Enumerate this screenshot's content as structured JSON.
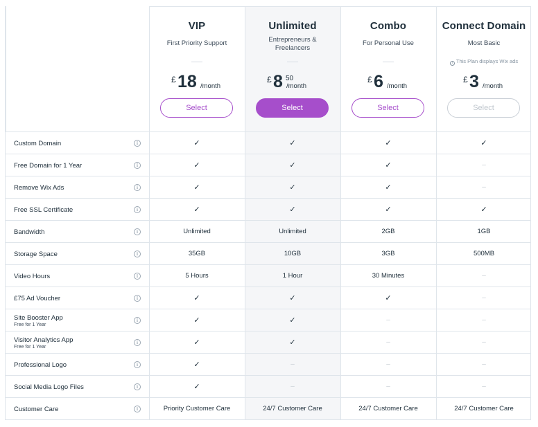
{
  "plans": [
    {
      "name": "VIP",
      "subtitle": "First Priority Support",
      "note": "",
      "currency": "£",
      "amount": "18",
      "cents": "",
      "period": "/month",
      "button": "Select",
      "style": "outline"
    },
    {
      "name": "Unlimited",
      "subtitle": "Entrepreneurs & Freelancers",
      "note": "",
      "currency": "£",
      "amount": "8",
      "cents": "50",
      "period": "/month",
      "button": "Select",
      "style": "primary"
    },
    {
      "name": "Combo",
      "subtitle": "For Personal Use",
      "note": "",
      "currency": "£",
      "amount": "6",
      "cents": "",
      "period": "/month",
      "button": "Select",
      "style": "outline"
    },
    {
      "name": "Connect Domain",
      "subtitle": "Most Basic",
      "note": "This Plan displays Wix ads",
      "currency": "£",
      "amount": "3",
      "cents": "",
      "period": "/month",
      "button": "Select",
      "style": "disabled"
    }
  ],
  "icons": {
    "check": "checkmark-icon",
    "dash": "dash-icon",
    "info": "info-icon"
  },
  "features": [
    {
      "label": "Custom Domain",
      "sub": "",
      "values": [
        "✓",
        "✓",
        "✓",
        "✓"
      ]
    },
    {
      "label": "Free Domain for 1 Year",
      "sub": "",
      "values": [
        "✓",
        "✓",
        "✓",
        "–"
      ]
    },
    {
      "label": "Remove Wix Ads",
      "sub": "",
      "values": [
        "✓",
        "✓",
        "✓",
        "–"
      ]
    },
    {
      "label": "Free SSL Certificate",
      "sub": "",
      "values": [
        "✓",
        "✓",
        "✓",
        "✓"
      ]
    },
    {
      "label": "Bandwidth",
      "sub": "",
      "values": [
        "Unlimited",
        "Unlimited",
        "2GB",
        "1GB"
      ]
    },
    {
      "label": "Storage Space",
      "sub": "",
      "values": [
        "35GB",
        "10GB",
        "3GB",
        "500MB"
      ]
    },
    {
      "label": "Video Hours",
      "sub": "",
      "values": [
        "5 Hours",
        "1 Hour",
        "30 Minutes",
        "–"
      ]
    },
    {
      "label": "£75 Ad Voucher",
      "sub": "",
      "values": [
        "✓",
        "✓",
        "✓",
        "–"
      ]
    },
    {
      "label": "Site Booster App",
      "sub": "Free for 1 Year",
      "values": [
        "✓",
        "✓",
        "–",
        "–"
      ]
    },
    {
      "label": "Visitor Analytics App",
      "sub": "Free for 1 Year",
      "values": [
        "✓",
        "✓",
        "–",
        "–"
      ]
    },
    {
      "label": "Professional Logo",
      "sub": "",
      "values": [
        "✓",
        "–",
        "–",
        "–"
      ]
    },
    {
      "label": "Social Media Logo Files",
      "sub": "",
      "values": [
        "✓",
        "–",
        "–",
        "–"
      ]
    },
    {
      "label": "Customer Care",
      "sub": "",
      "values": [
        "Priority Customer Care",
        "24/7 Customer Care",
        "24/7 Customer Care",
        "24/7 Customer Care"
      ]
    }
  ],
  "colors": {
    "accent": "#a64ecb",
    "border": "#dfe5eb",
    "highlight_column": "#f5f6f8",
    "text": "#20303c",
    "dash": "#c6cdd4"
  }
}
